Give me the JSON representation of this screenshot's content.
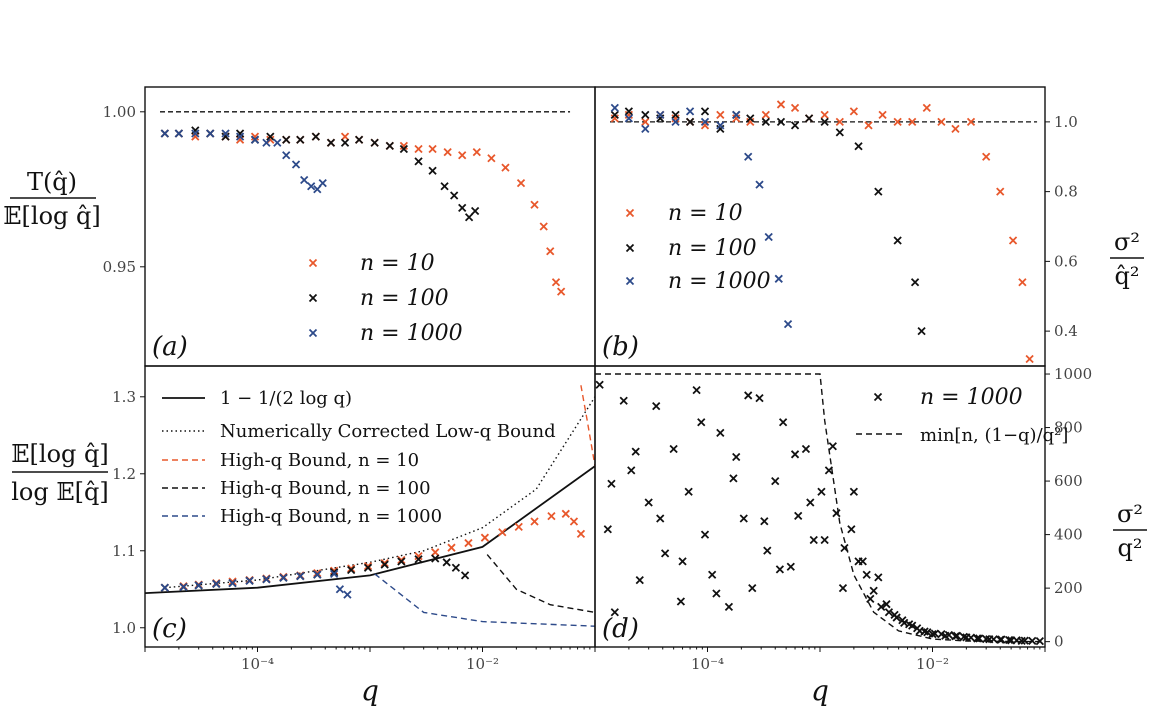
{
  "colors": {
    "n10": "#e8582c",
    "n100": "#111111",
    "n1000": "#2d4a8a"
  },
  "labels": {
    "a_ylabel_num": "T(q̂)",
    "a_ylabel_den": "𝔼[log q̂]",
    "b_ylabel_num": "σ²",
    "b_ylabel_den": "q̂²",
    "c_ylabel_num": "𝔼[log q̂]",
    "c_ylabel_den": "log 𝔼[q̂]",
    "d_ylabel_num": "σ²",
    "d_ylabel_den": "q²",
    "xlabel": "q",
    "tag_a": "(a)",
    "tag_b": "(b)",
    "tag_c": "(c)",
    "tag_d": "(d)"
  },
  "legend_ab": [
    "n = 10",
    "n = 100",
    "n = 1000"
  ],
  "legend_c": [
    "1 − 1/(2 log q)",
    "Numerically Corrected Low-q Bound",
    "High-q Bound, n = 10",
    "High-q Bound, n = 100",
    "High-q Bound, n = 1000"
  ],
  "legend_d": [
    "n = 1000",
    "min[n, (1−q)/q²]"
  ],
  "xticks": [
    "10⁻⁴",
    "10⁻²"
  ],
  "chart_data": [
    {
      "panel": "a",
      "type": "scatter",
      "xscale": "log",
      "xlim": [
        1e-05,
        0.1
      ],
      "ylim": [
        0.918,
        1.008
      ],
      "yticks": [
        0.95,
        1.0
      ],
      "ytick_labels": [
        "0.95",
        "1.00"
      ],
      "reference": {
        "y": 1.0,
        "x": [
          1e-05,
          0.06
        ],
        "style": "dashed"
      },
      "series": [
        {
          "name": "n = 10",
          "color": "n10",
          "x": [
            1.5e-05,
            2e-05,
            2.8e-05,
            3.8e-05,
            5.2e-05,
            7e-05,
            9.5e-05,
            0.00013,
            0.00018,
            0.00024,
            0.00033,
            0.00045,
            0.0006,
            0.0008,
            0.0011,
            0.0015,
            0.002,
            0.0027,
            0.0036,
            0.0049,
            0.0066,
            0.0089,
            0.012,
            0.016,
            0.022,
            0.029,
            0.035,
            0.04,
            0.045,
            0.05
          ],
          "y": [
            0.993,
            0.993,
            0.992,
            0.993,
            0.992,
            0.991,
            0.992,
            0.991,
            0.991,
            0.991,
            0.992,
            0.99,
            0.992,
            0.991,
            0.99,
            0.989,
            0.989,
            0.988,
            0.988,
            0.987,
            0.986,
            0.987,
            0.985,
            0.982,
            0.977,
            0.97,
            0.963,
            0.955,
            0.945,
            0.942
          ]
        },
        {
          "name": "n = 100",
          "color": "n100",
          "x": [
            1.5e-05,
            2e-05,
            2.8e-05,
            3.8e-05,
            5.2e-05,
            7e-05,
            9.5e-05,
            0.00013,
            0.00018,
            0.00024,
            0.00033,
            0.00045,
            0.0006,
            0.0008,
            0.0011,
            0.0015,
            0.002,
            0.0027,
            0.0036,
            0.0046,
            0.0056,
            0.0066,
            0.0076,
            0.0086
          ],
          "y": [
            0.993,
            0.993,
            0.994,
            0.993,
            0.992,
            0.993,
            0.991,
            0.992,
            0.991,
            0.991,
            0.992,
            0.99,
            0.99,
            0.991,
            0.99,
            0.989,
            0.988,
            0.984,
            0.981,
            0.976,
            0.973,
            0.969,
            0.966,
            0.968
          ]
        },
        {
          "name": "n = 1000",
          "color": "n1000",
          "x": [
            1.5e-05,
            2e-05,
            2.8e-05,
            3.8e-05,
            5.2e-05,
            7e-05,
            9.5e-05,
            0.00012,
            0.00015,
            0.00018,
            0.00022,
            0.00026,
            0.0003,
            0.00034,
            0.00038
          ],
          "y": [
            0.993,
            0.993,
            0.993,
            0.993,
            0.993,
            0.992,
            0.991,
            0.99,
            0.99,
            0.986,
            0.983,
            0.978,
            0.976,
            0.975,
            0.977
          ]
        }
      ]
    },
    {
      "panel": "b",
      "type": "scatter",
      "xscale": "log",
      "xlim": [
        1e-05,
        0.1
      ],
      "ylim": [
        0.3,
        1.1
      ],
      "yticks": [
        0.4,
        0.6,
        0.8,
        1.0
      ],
      "ytick_labels": [
        "0.4",
        "0.6",
        "0.8",
        "1.0"
      ],
      "reference": {
        "y": 1.0,
        "x": [
          1e-05,
          0.085
        ],
        "style": "dashed"
      },
      "series": [
        {
          "name": "n = 10",
          "color": "n10",
          "x": [
            1.5e-05,
            2e-05,
            2.8e-05,
            3.8e-05,
            5.2e-05,
            7e-05,
            9.5e-05,
            0.00013,
            0.00018,
            0.00024,
            0.00033,
            0.00045,
            0.0006,
            0.0008,
            0.0011,
            0.0015,
            0.002,
            0.0027,
            0.0036,
            0.0049,
            0.0066,
            0.0089,
            0.012,
            0.016,
            0.022,
            0.03,
            0.04,
            0.052,
            0.063,
            0.073
          ],
          "y": [
            1.01,
            1.02,
            1.0,
            1.02,
            1.01,
            1.0,
            0.99,
            1.02,
            1.01,
            1.0,
            1.02,
            1.05,
            1.04,
            1.01,
            1.02,
            1.0,
            1.03,
            0.99,
            1.02,
            1.0,
            1.0,
            1.04,
            1.0,
            0.98,
            1.0,
            0.9,
            0.8,
            0.66,
            0.54,
            0.32
          ]
        },
        {
          "name": "n = 100",
          "color": "n100",
          "x": [
            1.5e-05,
            2e-05,
            2.8e-05,
            3.8e-05,
            5.2e-05,
            7e-05,
            9.5e-05,
            0.00013,
            0.00018,
            0.00024,
            0.00033,
            0.00045,
            0.0006,
            0.0008,
            0.0011,
            0.0015,
            0.0022,
            0.0033,
            0.0049,
            0.007,
            0.008
          ],
          "y": [
            1.02,
            1.03,
            1.02,
            1.01,
            1.02,
            1.0,
            1.03,
            0.98,
            1.02,
            1.01,
            1.0,
            1.0,
            0.99,
            1.01,
            1.0,
            0.97,
            0.93,
            0.8,
            0.66,
            0.54,
            0.4
          ]
        },
        {
          "name": "n = 1000",
          "color": "n1000",
          "x": [
            1.5e-05,
            2e-05,
            2.8e-05,
            3.8e-05,
            5.2e-05,
            7e-05,
            9.5e-05,
            0.00013,
            0.00018,
            0.00023,
            0.00029,
            0.00035,
            0.00043,
            0.00052
          ],
          "y": [
            1.04,
            1.01,
            0.98,
            1.02,
            1.0,
            1.03,
            1.0,
            0.99,
            1.02,
            0.9,
            0.82,
            0.67,
            0.55,
            0.42
          ]
        }
      ]
    },
    {
      "panel": "c",
      "type": "line",
      "xscale": "log",
      "xlim": [
        1e-05,
        0.1
      ],
      "ylim": [
        0.975,
        1.34
      ],
      "yticks": [
        1.0,
        1.1,
        1.2,
        1.3
      ],
      "ytick_labels": [
        "1.0",
        "1.1",
        "1.2",
        "1.3"
      ],
      "lines": [
        {
          "name": "1 − 1/(2 log q)",
          "style": "solid",
          "color": "n100",
          "x": [
            1e-05,
            0.0001,
            0.001,
            0.01,
            0.1
          ],
          "y": [
            1.045,
            1.052,
            1.068,
            1.105,
            1.21
          ]
        },
        {
          "name": "Numerically Corrected Low-q Bound",
          "style": "dotted",
          "color": "n100",
          "x": [
            1.5e-05,
            0.0001,
            0.001,
            0.003,
            0.01,
            0.03,
            0.1
          ],
          "y": [
            1.052,
            1.062,
            1.085,
            1.1,
            1.13,
            1.18,
            1.3
          ]
        },
        {
          "name": "High-q Bound, n = 10",
          "style": "dashed",
          "color": "n10",
          "x": [
            0.075,
            0.085,
            0.1
          ],
          "y": [
            1.315,
            1.27,
            1.21
          ]
        },
        {
          "name": "High-q Bound, n = 100",
          "style": "dashed",
          "color": "n100",
          "x": [
            0.011,
            0.02,
            0.04,
            0.1
          ],
          "y": [
            1.095,
            1.05,
            1.03,
            1.02
          ]
        },
        {
          "name": "High-q Bound, n = 1000",
          "style": "dashed",
          "color": "n1000",
          "x": [
            0.0011,
            0.003,
            0.01,
            0.1
          ],
          "y": [
            1.07,
            1.02,
            1.008,
            1.002
          ]
        }
      ],
      "series": [
        {
          "name": "n = 10",
          "color": "n10",
          "x": [
            1.5e-05,
            2.2e-05,
            3e-05,
            4.3e-05,
            6e-05,
            8.5e-05,
            0.00012,
            0.00017,
            0.00024,
            0.00034,
            0.00048,
            0.00068,
            0.00096,
            0.00135,
            0.0019,
            0.0027,
            0.0038,
            0.0053,
            0.0075,
            0.0105,
            0.015,
            0.021,
            0.029,
            0.041,
            0.055,
            0.065,
            0.075
          ],
          "y": [
            1.052,
            1.054,
            1.056,
            1.058,
            1.06,
            1.062,
            1.064,
            1.066,
            1.068,
            1.071,
            1.074,
            1.077,
            1.08,
            1.084,
            1.088,
            1.093,
            1.098,
            1.104,
            1.11,
            1.117,
            1.124,
            1.131,
            1.138,
            1.145,
            1.148,
            1.138,
            1.122
          ]
        },
        {
          "name": "n = 100",
          "color": "n100",
          "x": [
            1.5e-05,
            2.2e-05,
            3e-05,
            4.3e-05,
            6e-05,
            8.5e-05,
            0.00012,
            0.00017,
            0.00024,
            0.00034,
            0.00048,
            0.00068,
            0.00096,
            0.00135,
            0.0019,
            0.0027,
            0.0038,
            0.0048,
            0.0058,
            0.007
          ],
          "y": [
            1.052,
            1.053,
            1.055,
            1.057,
            1.058,
            1.061,
            1.063,
            1.065,
            1.067,
            1.069,
            1.072,
            1.075,
            1.078,
            1.082,
            1.086,
            1.089,
            1.09,
            1.085,
            1.078,
            1.068
          ]
        },
        {
          "name": "n = 1000",
          "color": "n1000",
          "x": [
            1.5e-05,
            2.2e-05,
            3e-05,
            4.3e-05,
            6e-05,
            8.5e-05,
            0.00012,
            0.00017,
            0.00024,
            0.00034,
            0.00048,
            0.00054,
            0.00063
          ],
          "y": [
            1.052,
            1.053,
            1.055,
            1.057,
            1.058,
            1.061,
            1.063,
            1.065,
            1.067,
            1.069,
            1.07,
            1.05,
            1.043
          ]
        }
      ]
    },
    {
      "panel": "d",
      "type": "scatter",
      "xscale": "log",
      "xlim": [
        1e-05,
        0.1
      ],
      "ylim": [
        -20,
        1030
      ],
      "yticks": [
        0,
        200,
        400,
        600,
        800,
        1000
      ],
      "ytick_labels": [
        "0",
        "200",
        "400",
        "600",
        "800",
        "1000"
      ],
      "bound": {
        "name": "min[n, (1−q)/q²]",
        "style": "dashed",
        "x": [
          1e-05,
          0.001,
          0.0011,
          0.0015,
          0.002,
          0.003,
          0.005,
          0.01,
          0.02,
          0.05,
          0.1
        ],
        "y": [
          1000,
          1000,
          826,
          443,
          249,
          110,
          40,
          10,
          2.5,
          0.4,
          0.1
        ]
      },
      "series": [
        {
          "name": "n = 1000",
          "color": "n100",
          "x": [
            1.1e-05,
            1.3e-05,
            1.5e-05,
            1.8e-05,
            2.1e-05,
            2.5e-05,
            3e-05,
            3.5e-05,
            4.2e-05,
            5e-05,
            5.8e-05,
            6.8e-05,
            8e-05,
            9.5e-05,
            0.00011,
            0.00013,
            0.000155,
            0.00018,
            0.00021,
            0.00025,
            0.00029,
            0.00034,
            0.0004,
            0.00047,
            0.00055,
            0.00064,
            0.00075,
            0.00088,
            0.00103,
            0.0012,
            0.0014,
            0.00165,
            0.0019,
            0.0022,
            0.0026,
            0.003,
            0.0035,
            0.0041,
            0.0048,
            0.0056,
            0.0066,
            0.0077,
            0.009,
            0.0105,
            0.012,
            0.014,
            0.0165,
            0.019,
            0.022,
            0.026,
            0.03,
            0.035,
            0.041,
            0.048,
            0.056,
            0.066,
            0.077,
            0.09,
            1.4e-05,
            2.3e-05,
            3.8e-05,
            6e-05,
            8.8e-05,
            0.00012,
            0.00017,
            0.00023,
            0.00032,
            0.00044,
            0.0006,
            0.00082,
            0.0011,
            0.0013,
            0.0016,
            0.002,
            0.0024,
            0.0028,
            0.0033,
            0.0039,
            0.0046,
            0.0054,
            0.0062,
            0.0073,
            0.0085,
            0.01,
            0.013,
            0.016,
            0.02,
            0.025,
            0.032,
            0.04,
            0.05,
            0.062
          ],
          "y": [
            960,
            420,
            110,
            900,
            640,
            230,
            520,
            880,
            330,
            720,
            150,
            560,
            940,
            400,
            250,
            780,
            130,
            690,
            460,
            200,
            910,
            340,
            600,
            820,
            280,
            470,
            720,
            380,
            560,
            640,
            480,
            350,
            420,
            300,
            250,
            190,
            130,
            110,
            90,
            70,
            60,
            40,
            35,
            30,
            28,
            25,
            22,
            18,
            15,
            12,
            10,
            9,
            8,
            6,
            5,
            4,
            3,
            2,
            590,
            710,
            460,
            300,
            820,
            180,
            610,
            920,
            450,
            270,
            700,
            520,
            380,
            730,
            200,
            560,
            300,
            160,
            240,
            140,
            100,
            80,
            65,
            50,
            38,
            28,
            22,
            20,
            16,
            12,
            9,
            7,
            5,
            3
          ]
        }
      ]
    }
  ]
}
